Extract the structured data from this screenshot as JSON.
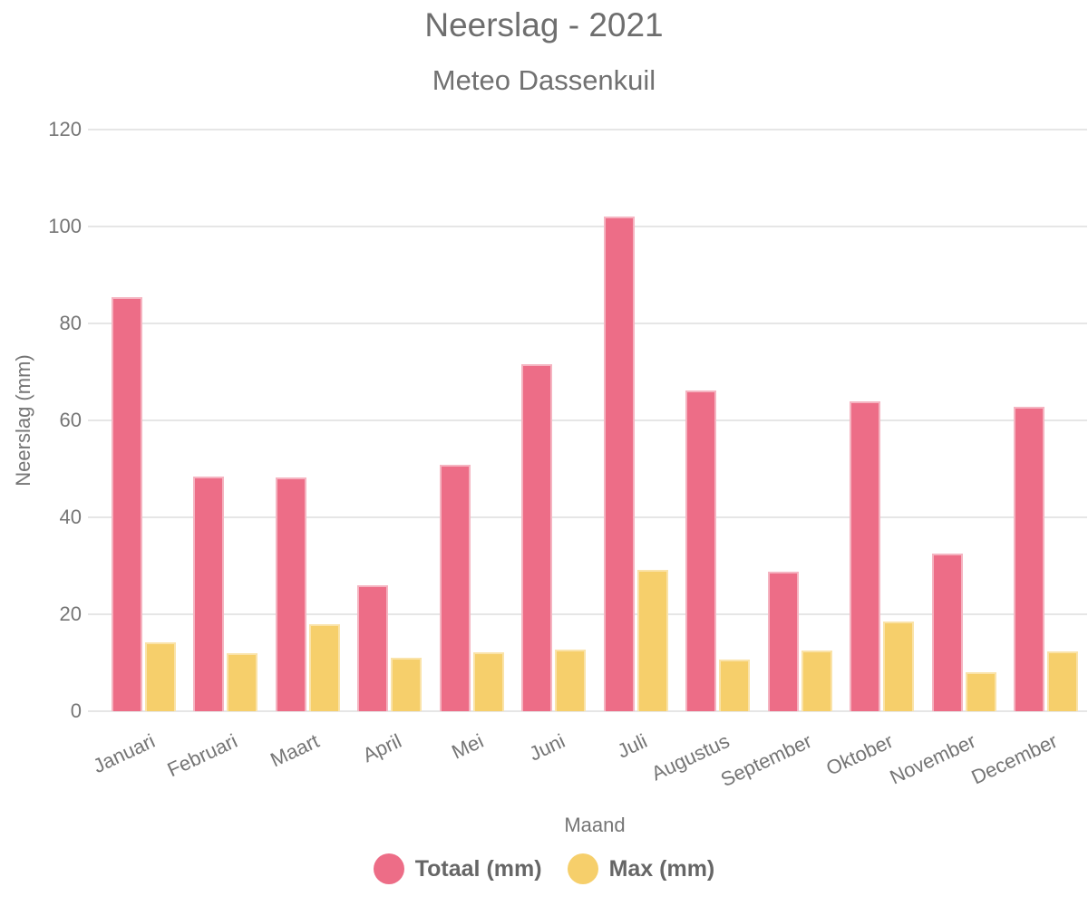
{
  "chart_data": {
    "type": "bar",
    "title": "Neerslag - 2021",
    "subtitle": "Meteo Dassenkuil",
    "xlabel": "Maand",
    "ylabel": "Neerslag (mm)",
    "ylim": [
      0,
      120
    ],
    "ytick_step": 20,
    "yticks": [
      0,
      20,
      40,
      60,
      80,
      100,
      120
    ],
    "grid": true,
    "legend_position": "bottom",
    "categories": [
      "Januari",
      "Februari",
      "Maart",
      "April",
      "Mei",
      "Juni",
      "Juli",
      "Augustus",
      "September",
      "Oktober",
      "November",
      "December"
    ],
    "series": [
      {
        "name": "Totaal (mm)",
        "color": "#ED6D87",
        "border_color": "#F5B4C1",
        "values": [
          85.5,
          48.5,
          48.3,
          25.9,
          50.9,
          71.5,
          102,
          66.2,
          28.7,
          63.9,
          32.6,
          62.9
        ]
      },
      {
        "name": "Max (mm)",
        "color": "#F6CF6B",
        "border_color": "#FAE3A9",
        "values": [
          14.2,
          11.9,
          17.9,
          11,
          12.1,
          12.8,
          29.2,
          10.7,
          12.5,
          18.5,
          8,
          12.4
        ]
      }
    ],
    "colors": {
      "grid": "#e6e6e6",
      "tick_text": "#757575",
      "title_text": "#6e6e6e",
      "legend_text": "#666666",
      "background": "#ffffff"
    }
  }
}
